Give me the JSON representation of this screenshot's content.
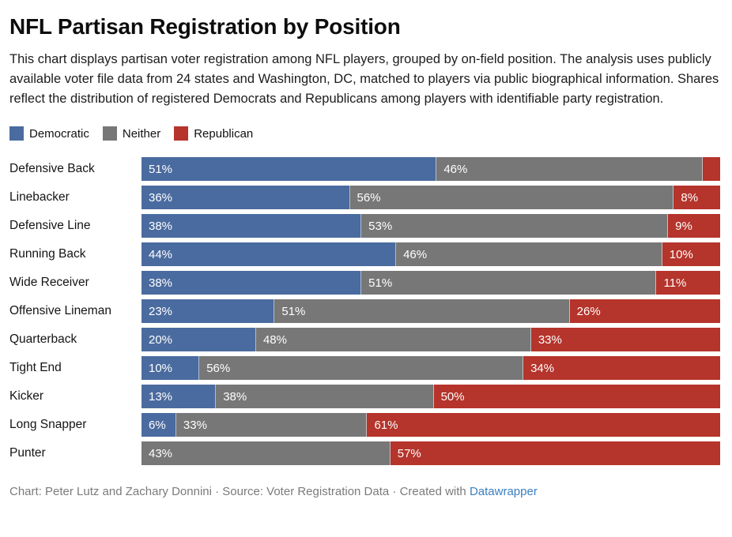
{
  "title": "NFL Partisan Registration by Position",
  "description": "This chart displays partisan voter registration among NFL players, grouped by on-field position. The analysis uses publicly available voter file data from 24 states and Washington, DC, matched to players via public biographical information. Shares reflect the distribution of registered Democrats and Republicans among players with identifiable party registration.",
  "legend": [
    {
      "label": "Democratic",
      "color": "#4a6b9f"
    },
    {
      "label": "Neither",
      "color": "#777777"
    },
    {
      "label": "Republican",
      "color": "#b5342b"
    }
  ],
  "chart_data": {
    "type": "bar",
    "orientation": "horizontal-stacked",
    "unit": "%",
    "xlim": [
      0,
      100
    ],
    "grid": false,
    "legend_position": "top",
    "categories": [
      "Defensive Back",
      "Linebacker",
      "Defensive Line",
      "Running Back",
      "Wide Receiver",
      "Offensive Lineman",
      "Quarterback",
      "Tight End",
      "Kicker",
      "Long Snapper",
      "Punter"
    ],
    "series": [
      {
        "name": "Democratic",
        "color": "#4a6b9f",
        "values": [
          51,
          36,
          38,
          44,
          38,
          23,
          20,
          10,
          13,
          6,
          0
        ],
        "labels": [
          "51%",
          "36%",
          "38%",
          "44%",
          "38%",
          "23%",
          "20%",
          "10%",
          "13%",
          "6%",
          ""
        ]
      },
      {
        "name": "Neither",
        "color": "#777777",
        "values": [
          46,
          56,
          53,
          46,
          51,
          51,
          48,
          56,
          38,
          33,
          43
        ],
        "labels": [
          "46%",
          "56%",
          "53%",
          "46%",
          "51%",
          "51%",
          "48%",
          "56%",
          "38%",
          "33%",
          "43%"
        ]
      },
      {
        "name": "Republican",
        "color": "#b5342b",
        "values": [
          3,
          8,
          9,
          10,
          11,
          26,
          33,
          34,
          50,
          61,
          57
        ],
        "labels": [
          "",
          "8%",
          "9%",
          "10%",
          "11%",
          "26%",
          "33%",
          "34%",
          "50%",
          "61%",
          "57%"
        ]
      }
    ]
  },
  "footer": {
    "text": "Chart: Peter Lutz and Zachary Donnini · Source: Voter Registration Data · Created with ",
    "link_label": "Datawrapper",
    "link_color": "#3a7fc2"
  }
}
